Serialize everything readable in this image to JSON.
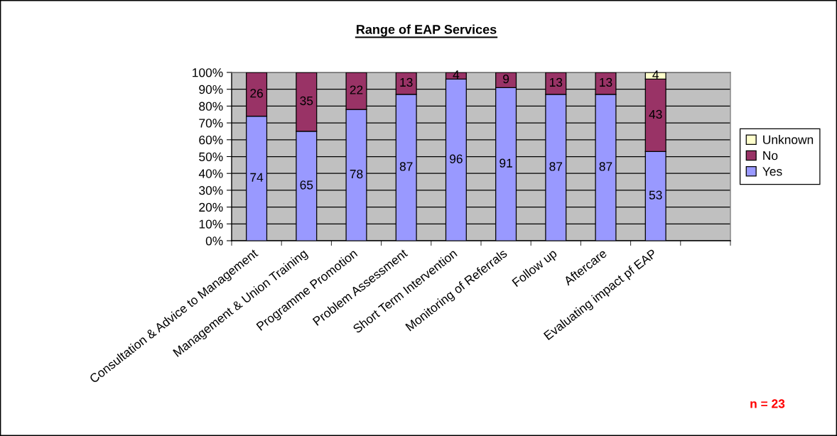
{
  "chart_data": {
    "type": "bar",
    "title": "Range of EAP Services",
    "stacked": true,
    "categories": [
      "Consultation & Advice to Management",
      "Management & Union Training",
      "Programme Promotion",
      "Problem Assessment",
      "Short Term Intervention",
      "Monitoring of Referrals",
      "Follow up",
      "Aftercare",
      "Evaluating impact pf EAP",
      null
    ],
    "series": [
      {
        "name": "Yes",
        "color": "#9999ff",
        "values": [
          74,
          65,
          78,
          87,
          96,
          91,
          87,
          87,
          53,
          null
        ]
      },
      {
        "name": "No",
        "color": "#993366",
        "values": [
          26,
          35,
          22,
          13,
          4,
          9,
          13,
          13,
          43,
          null
        ]
      },
      {
        "name": "Unknown",
        "color": "#ffffcc",
        "values": [
          null,
          null,
          null,
          null,
          null,
          null,
          null,
          null,
          4,
          null
        ]
      }
    ],
    "ylim": [
      0,
      100
    ],
    "yticks": [
      {
        "value": 0,
        "label": "0%"
      },
      {
        "value": 10,
        "label": "10%"
      },
      {
        "value": 20,
        "label": "20%"
      },
      {
        "value": 30,
        "label": "30%"
      },
      {
        "value": 40,
        "label": "40%"
      },
      {
        "value": 50,
        "label": "50%"
      },
      {
        "value": 60,
        "label": "60%"
      },
      {
        "value": 70,
        "label": "70%"
      },
      {
        "value": 80,
        "label": "80%"
      },
      {
        "value": 90,
        "label": "90%"
      },
      {
        "value": 100,
        "label": "100%"
      }
    ],
    "grid": "y",
    "legend": "right",
    "data_labels": true,
    "annotations": [
      "n = 23"
    ]
  }
}
